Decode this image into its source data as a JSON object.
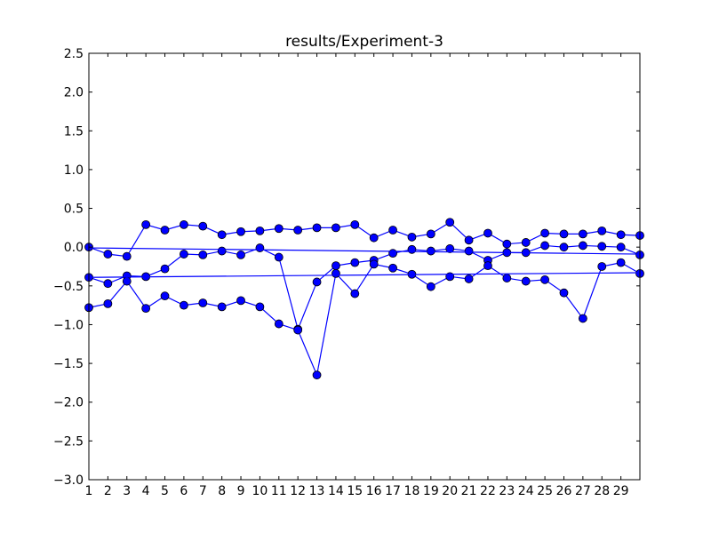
{
  "chart_data": {
    "type": "line",
    "title": "results/Experiment-3",
    "xlabel": "",
    "ylabel": "",
    "ylim": [
      -3.0,
      2.5
    ],
    "xlim": [
      1,
      30
    ],
    "grid": false,
    "colors": {
      "series": "#0000ff",
      "axes": "#000000",
      "background": "#ffffff"
    },
    "x_tick_labels": [
      "1",
      "2",
      "3",
      "4",
      "5",
      "6",
      "7",
      "8",
      "9",
      "10",
      "11",
      "12",
      "13",
      "14",
      "15",
      "16",
      "17",
      "18",
      "19",
      "20",
      "21",
      "22",
      "23",
      "24",
      "25",
      "26",
      "27",
      "28",
      "29"
    ],
    "y_tick_labels": [
      "2.5",
      "2.0",
      "1.5",
      "1.0",
      "0.5",
      "0.0",
      "−0.5",
      "−1.0",
      "−1.5",
      "−2.0",
      "−2.5",
      "−3.0"
    ],
    "y_tick_values": [
      2.5,
      2.0,
      1.5,
      1.0,
      0.5,
      0.0,
      -0.5,
      -1.0,
      -1.5,
      -2.0,
      -2.5,
      -3.0
    ],
    "x": [
      1,
      2,
      3,
      4,
      5,
      6,
      7,
      8,
      9,
      10,
      11,
      12,
      13,
      14,
      15,
      16,
      17,
      18,
      19,
      20,
      21,
      22,
      23,
      24,
      25,
      26,
      27,
      28,
      29,
      30
    ],
    "series": [
      {
        "values": [
          0.0,
          -0.09,
          -0.12,
          0.29,
          0.22,
          0.29,
          0.27,
          0.16,
          0.2,
          0.21,
          0.24,
          0.22,
          0.25,
          0.25,
          0.29,
          0.12,
          0.22,
          0.13,
          0.17,
          0.32,
          0.09,
          0.18,
          0.04,
          0.06,
          0.18,
          0.17,
          0.17,
          0.21,
          0.16,
          0.15
        ]
      },
      {
        "values": [
          -0.39,
          -0.47,
          -0.37,
          -0.38,
          -0.28,
          -0.09,
          -0.1,
          -0.05,
          -0.1,
          -0.01,
          -0.13,
          -1.06,
          -0.45,
          -0.24,
          -0.2,
          -0.17,
          -0.08,
          -0.03,
          -0.05,
          -0.02,
          -0.05,
          -0.17,
          -0.07,
          -0.07,
          0.02,
          0.0,
          0.02,
          0.01,
          0.0,
          -0.1
        ]
      },
      {
        "values": [
          -0.78,
          -0.73,
          -0.44,
          -0.79,
          -0.63,
          -0.75,
          -0.72,
          -0.77,
          -0.69,
          -0.77,
          -0.99,
          -1.07,
          -1.65,
          -0.34,
          -0.6,
          -0.22,
          -0.27,
          -0.35,
          -0.51,
          -0.38,
          -0.41,
          -0.24,
          -0.4,
          -0.44,
          -0.42,
          -0.59,
          -0.92,
          -0.25,
          -0.2,
          -0.34
        ]
      },
      {
        "x": [
          1,
          30
        ],
        "values": [
          -0.01,
          -0.09
        ]
      },
      {
        "x": [
          1,
          30
        ],
        "values": [
          -0.39,
          -0.33
        ]
      }
    ]
  }
}
